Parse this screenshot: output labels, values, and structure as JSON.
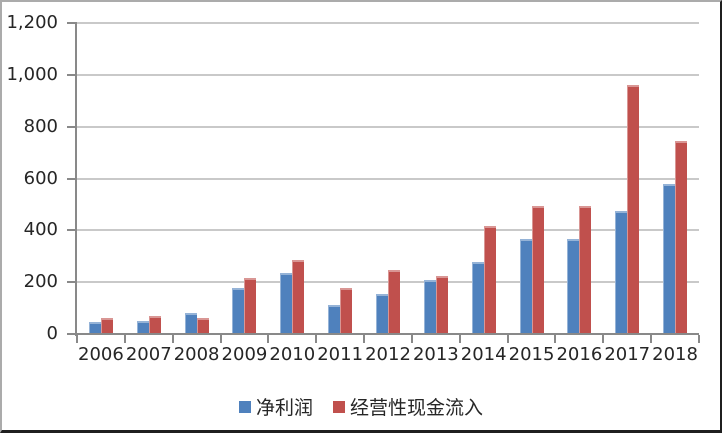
{
  "chart_data": {
    "type": "bar",
    "categories": [
      "2006",
      "2007",
      "2008",
      "2009",
      "2010",
      "2011",
      "2012",
      "2013",
      "2014",
      "2015",
      "2016",
      "2017",
      "2018"
    ],
    "series": [
      {
        "name": "净利润",
        "color": "#4F81BD",
        "highlight": "#95B3D7",
        "values": [
          45,
          52,
          80,
          178,
          235,
          112,
          154,
          208,
          278,
          368,
          368,
          473,
          580
        ]
      },
      {
        "name": "经营性现金流入",
        "color": "#C0504D",
        "highlight": "#D99694",
        "values": [
          62,
          68,
          63,
          218,
          285,
          178,
          248,
          224,
          418,
          492,
          493,
          962,
          744
        ]
      }
    ],
    "title": "",
    "xlabel": "",
    "ylabel": "",
    "ylim": [
      0,
      1200
    ],
    "ytick_interval": 200,
    "ytick_labels": [
      "0",
      "200",
      "400",
      "600",
      "800",
      "1,000",
      "1,200"
    ],
    "grid": true,
    "legend_position": "bottom"
  },
  "colors": {
    "axis": "#898989",
    "gridline": "#C9C9C9",
    "label_text": "#262626",
    "background": "#FFFFFF"
  }
}
